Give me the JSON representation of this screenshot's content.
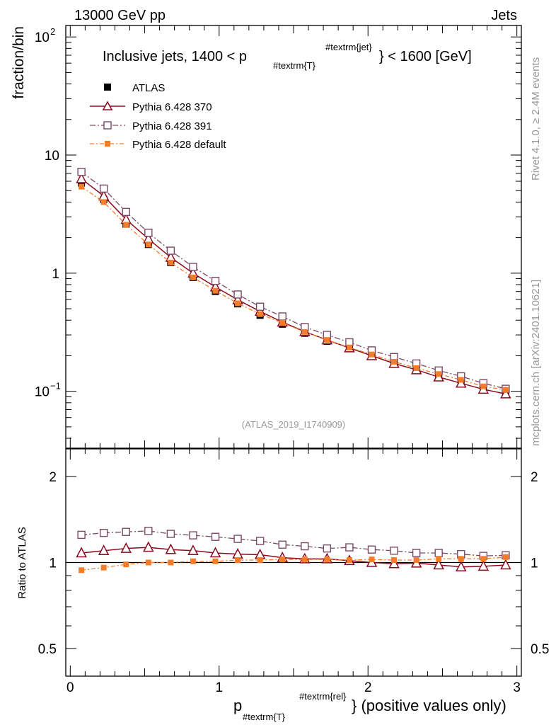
{
  "header": {
    "left": "13000 GeV pp",
    "right": "Jets"
  },
  "side_labels": {
    "rivet": "Rivet 4.1.0, ≥ 2.4M events",
    "mcplots": "mcplots.cern.ch [arXiv:2401.10621]"
  },
  "plot_title": {
    "prefix": "Inclusive jets, 1400 < p",
    "sub": "#textrm{T}",
    "sup": "#textrm{jet}",
    "suffix": "} < 1600 [GeV]"
  },
  "analysis_id": "(ATLAS_2019_I1740909)",
  "x_axis": {
    "main": "p",
    "sub": "#textrm{T}",
    "sup": "#textrm{rel}",
    "suffix": "} (positive values only)"
  },
  "chart_data": [
    {
      "type": "line",
      "panel": "main",
      "yscale": "log",
      "ylabel": "fraction/bin",
      "xlim": [
        -0.03,
        3.03
      ],
      "ylim": [
        0.033,
        125
      ],
      "y_tick_labels": [
        {
          "value": 0.1,
          "base": "10",
          "exp": "−1"
        },
        {
          "value": 1,
          "base": "1",
          "exp": ""
        },
        {
          "value": 10,
          "base": "10",
          "exp": ""
        },
        {
          "value": 100,
          "base": "10",
          "exp": "2"
        }
      ],
      "x": [
        0.075,
        0.225,
        0.375,
        0.525,
        0.675,
        0.825,
        0.975,
        1.125,
        1.275,
        1.425,
        1.575,
        1.725,
        1.875,
        2.025,
        2.175,
        2.325,
        2.475,
        2.625,
        2.775,
        2.925
      ],
      "series": [
        {
          "name": "ATLAS",
          "key": "atlas",
          "color": "#000000",
          "values": [
            5.8,
            4.2,
            2.6,
            1.75,
            1.23,
            0.92,
            0.7,
            0.55,
            0.44,
            0.37,
            0.31,
            0.265,
            0.23,
            0.198,
            0.173,
            0.153,
            0.135,
            0.12,
            0.107,
            0.097
          ]
        },
        {
          "name": "Pythia 6.428 370",
          "key": "p370",
          "color": "#8b0a1e",
          "values": [
            6.3,
            4.5,
            2.85,
            1.95,
            1.36,
            1.0,
            0.765,
            0.595,
            0.475,
            0.385,
            0.32,
            0.272,
            0.233,
            0.2,
            0.172,
            0.152,
            0.132,
            0.117,
            0.104,
            0.095
          ]
        },
        {
          "name": "Pythia 6.428 391",
          "key": "p391",
          "color": "#7a4a66",
          "values": [
            7.2,
            5.2,
            3.3,
            2.2,
            1.55,
            1.13,
            0.86,
            0.66,
            0.52,
            0.43,
            0.35,
            0.3,
            0.26,
            0.222,
            0.195,
            0.172,
            0.15,
            0.134,
            0.117,
            0.105
          ]
        },
        {
          "name": "Pythia 6.428 default",
          "key": "pdef",
          "color": "#f57c28",
          "values": [
            5.4,
            4.0,
            2.57,
            1.75,
            1.23,
            0.92,
            0.71,
            0.555,
            0.45,
            0.38,
            0.318,
            0.272,
            0.235,
            0.205,
            0.178,
            0.157,
            0.14,
            0.125,
            0.11,
            0.103
          ]
        }
      ]
    },
    {
      "type": "line",
      "panel": "ratio",
      "yscale": "log",
      "ylabel": "Ratio to ATLAS",
      "xlim": [
        -0.03,
        3.03
      ],
      "ylim": [
        0.4,
        2.5
      ],
      "y_ticks": [
        {
          "value": 0.5,
          "label": "0.5"
        },
        {
          "value": 1,
          "label": "1"
        },
        {
          "value": 2,
          "label": "2"
        }
      ],
      "x_ticks": [
        {
          "value": 0,
          "label": "0"
        },
        {
          "value": 1,
          "label": "1"
        },
        {
          "value": 2,
          "label": "2"
        },
        {
          "value": 3,
          "label": "3"
        }
      ],
      "x": [
        0.075,
        0.225,
        0.375,
        0.525,
        0.675,
        0.825,
        0.975,
        1.125,
        1.275,
        1.425,
        1.575,
        1.725,
        1.875,
        2.025,
        2.175,
        2.325,
        2.475,
        2.625,
        2.775,
        2.925
      ],
      "series": [
        {
          "name": "Pythia 6.428 370",
          "key": "p370",
          "color": "#8b0a1e",
          "values": [
            1.08,
            1.1,
            1.12,
            1.13,
            1.11,
            1.1,
            1.08,
            1.07,
            1.065,
            1.04,
            1.03,
            1.03,
            1.015,
            1.0,
            0.99,
            0.995,
            0.98,
            0.965,
            0.97,
            0.98
          ]
        },
        {
          "name": "Pythia 6.428 391",
          "key": "p391",
          "color": "#7a4a66",
          "values": [
            1.25,
            1.27,
            1.28,
            1.29,
            1.26,
            1.245,
            1.23,
            1.21,
            1.19,
            1.155,
            1.14,
            1.12,
            1.13,
            1.11,
            1.1,
            1.08,
            1.08,
            1.07,
            1.055,
            1.06
          ]
        },
        {
          "name": "Pythia 6.428 default",
          "key": "pdef",
          "color": "#f57c28",
          "values": [
            0.94,
            0.96,
            0.985,
            1.0,
            1.0,
            1.01,
            1.01,
            1.02,
            1.02,
            1.025,
            1.025,
            1.025,
            1.02,
            1.025,
            1.02,
            1.02,
            1.03,
            1.03,
            1.03,
            1.045
          ]
        }
      ]
    }
  ]
}
